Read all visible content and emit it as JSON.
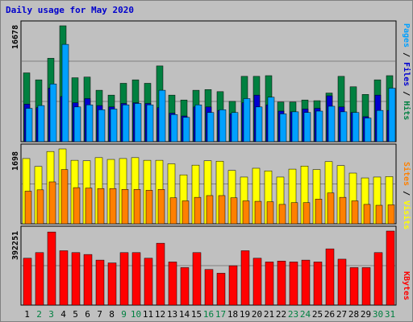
{
  "title": "Daily usage for May 2020",
  "chart_data": [
    {
      "type": "bar",
      "panel": "hits",
      "max_label": "16678",
      "categories": [
        "1",
        "2",
        "3",
        "4",
        "5",
        "6",
        "7",
        "8",
        "9",
        "10",
        "11",
        "12",
        "13",
        "14",
        "15",
        "16",
        "17",
        "18",
        "19",
        "20",
        "21",
        "22",
        "23",
        "24",
        "25",
        "26",
        "27",
        "28",
        "29",
        "30",
        "31"
      ],
      "weekend_days": [
        "2",
        "3",
        "9",
        "10",
        "16",
        "17",
        "23",
        "24",
        "30",
        "31"
      ],
      "series": [
        {
          "name": "Hits",
          "color": "#008040",
          "values": [
            9900,
            8900,
            12000,
            16678,
            9200,
            9300,
            7400,
            6700,
            8400,
            8900,
            8400,
            10900,
            6700,
            6000,
            7400,
            7500,
            7200,
            5800,
            9400,
            9400,
            9500,
            5700,
            5700,
            6000,
            5900,
            7000,
            9400,
            7900,
            6800,
            8900,
            9500
          ]
        },
        {
          "name": "Files",
          "color": "#0000d0",
          "values": [
            5400,
            4900,
            7700,
            6500,
            5600,
            6200,
            5200,
            5000,
            5500,
            5600,
            5500,
            4900,
            4100,
            3700,
            5000,
            5000,
            4500,
            4000,
            5600,
            6700,
            5300,
            4400,
            4300,
            4700,
            4800,
            6600,
            5000,
            4200,
            3600,
            6700,
            4500
          ]
        },
        {
          "name": "Pages",
          "color": "#00a0ff",
          "values": [
            4800,
            5200,
            8300,
            14000,
            5000,
            5300,
            4600,
            4700,
            5300,
            5500,
            5300,
            7400,
            3900,
            3500,
            5300,
            4200,
            4600,
            4200,
            6200,
            5000,
            6400,
            4000,
            4300,
            4200,
            4400,
            5100,
            4300,
            4200,
            3400,
            4500,
            7700
          ]
        }
      ]
    },
    {
      "type": "bar",
      "panel": "visits",
      "max_label": "1698",
      "categories": [
        "1",
        "2",
        "3",
        "4",
        "5",
        "6",
        "7",
        "8",
        "9",
        "10",
        "11",
        "12",
        "13",
        "14",
        "15",
        "16",
        "17",
        "18",
        "19",
        "20",
        "21",
        "22",
        "23",
        "24",
        "25",
        "26",
        "27",
        "28",
        "29",
        "30",
        "31"
      ],
      "series": [
        {
          "name": "Visits",
          "color": "#ffff00",
          "values": [
            1480,
            1300,
            1640,
            1698,
            1440,
            1430,
            1500,
            1460,
            1480,
            1500,
            1440,
            1440,
            1360,
            1110,
            1330,
            1430,
            1420,
            1210,
            1060,
            1260,
            1200,
            1060,
            1240,
            1310,
            1230,
            1410,
            1320,
            1150,
            1040,
            1060,
            1070
          ]
        },
        {
          "name": "Sites",
          "color": "#ff8000",
          "values": [
            740,
            770,
            950,
            1230,
            820,
            810,
            800,
            800,
            780,
            780,
            760,
            780,
            590,
            520,
            600,
            640,
            640,
            590,
            520,
            510,
            500,
            440,
            480,
            480,
            560,
            700,
            600,
            520,
            440,
            420,
            430
          ]
        }
      ]
    },
    {
      "type": "bar",
      "panel": "kbytes",
      "max_label": "392251",
      "categories": [
        "1",
        "2",
        "3",
        "4",
        "5",
        "6",
        "7",
        "8",
        "9",
        "10",
        "11",
        "12",
        "13",
        "14",
        "15",
        "16",
        "17",
        "18",
        "19",
        "20",
        "21",
        "22",
        "23",
        "24",
        "25",
        "26",
        "27",
        "28",
        "29",
        "30",
        "31"
      ],
      "series": [
        {
          "name": "KBytes",
          "color": "#ff0000",
          "values": [
            250000,
            280000,
            390000,
            290000,
            280000,
            270000,
            240000,
            225000,
            280000,
            280000,
            250000,
            330000,
            230000,
            200000,
            280000,
            190000,
            170000,
            210000,
            290000,
            250000,
            230000,
            235000,
            230000,
            240000,
            230000,
            300000,
            245000,
            200000,
            200000,
            280000,
            395000
          ]
        }
      ]
    }
  ],
  "right_labels": {
    "hits_panel": [
      {
        "text": "Pages",
        "color": "#00a0ff"
      },
      {
        "text": " / ",
        "color": "#000000"
      },
      {
        "text": "Files",
        "color": "#0000d0"
      },
      {
        "text": " / ",
        "color": "#000000"
      },
      {
        "text": "Hits",
        "color": "#008040"
      }
    ],
    "visits_panel": [
      {
        "text": "Sites",
        "color": "#ff8000"
      },
      {
        "text": " / ",
        "color": "#000000"
      },
      {
        "text": "Visits",
        "color": "#ffff00"
      }
    ],
    "kbytes_panel": [
      {
        "text": "KBytes",
        "color": "#ff0000"
      }
    ]
  },
  "colors": {
    "background": "#c0c0c0",
    "panel_border": "#000000",
    "title": "#0000cc",
    "weekday_label": "#000000",
    "weekend_label": "#008040"
  }
}
